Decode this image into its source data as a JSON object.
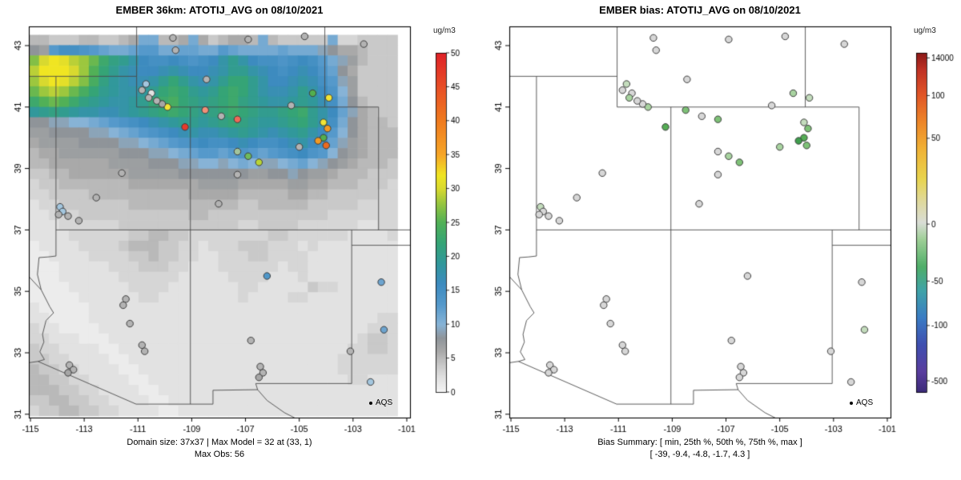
{
  "left_panel": {
    "title": "EMBER 36km: ATOTIJ_AVG on 08/10/2021",
    "caption_line1": "Domain size: 37x37 | Max Model = 32 at (33, 1)",
    "caption_line2": "Max Obs: 56",
    "legend_label": "AQS",
    "colorbar": {
      "unit": "ug/m3",
      "ticks": [
        0,
        5,
        10,
        15,
        20,
        25,
        30,
        35,
        40,
        45,
        50
      ]
    }
  },
  "right_panel": {
    "title": "EMBER bias: ATOTIJ_AVG on 08/10/2021",
    "caption_line1": "Bias Summary: [ min, 25th %, 50th %, 75th %, max ]",
    "caption_line2": "[ -39,  -9.4,  -4.8,  -1.7,  4.3 ]",
    "legend_label": "AQS",
    "colorbar": {
      "unit": "ug/m3",
      "ticks": [
        "14000",
        "100",
        "50",
        "0",
        "-50",
        "-100",
        "-500"
      ]
    }
  },
  "axes": {
    "x_ticks": [
      -115,
      -113,
      -111,
      -109,
      -107,
      -105,
      -103,
      -101
    ],
    "y_ticks": [
      31,
      33,
      35,
      37,
      39,
      41,
      43
    ]
  },
  "station_fields": [
    "lon",
    "lat",
    "obs_color",
    "bias_color"
  ],
  "stations": [
    [
      -109.7,
      43.25,
      "#b3b3b3",
      "#d7d7d7"
    ],
    [
      -109.6,
      42.85,
      "#b3b3b3",
      "#d7d7d7"
    ],
    [
      -106.9,
      43.2,
      "#b3b3b3",
      "#d7d7d7"
    ],
    [
      -104.8,
      43.3,
      "#b3b3b3",
      "#d7d7d7"
    ],
    [
      -102.6,
      43.05,
      "#b3b3b3",
      "#d7d7d7"
    ],
    [
      -104.5,
      41.45,
      "#52af4e",
      "#a8d3a0"
    ],
    [
      -103.9,
      41.3,
      "#f2e434",
      "#c3dcbc"
    ],
    [
      -105.3,
      41.05,
      "#b3b3b3",
      "#d7d7d7"
    ],
    [
      -109.9,
      41.0,
      "#f2e434",
      "#a8d3a0"
    ],
    [
      -110.1,
      41.1,
      "#a6a6a6",
      "#d7d7d7"
    ],
    [
      -110.7,
      41.75,
      "#a3c6de",
      "#c3dcbc"
    ],
    [
      -110.85,
      41.55,
      "#b3b3b3",
      "#d7d7d7"
    ],
    [
      -110.5,
      41.45,
      "#e3e3e3",
      "#d7d7d7"
    ],
    [
      -110.6,
      41.3,
      "#b3b3b3",
      "#a8d3a0"
    ],
    [
      -110.3,
      41.2,
      "#b3b3b3",
      "#d7d7d7"
    ],
    [
      -108.45,
      41.9,
      "#b3b3b3",
      "#d7d7d7"
    ],
    [
      -108.5,
      40.9,
      "#f09078",
      "#7ec177"
    ],
    [
      -107.9,
      40.7,
      "#b3b3b3",
      "#d7d7d7"
    ],
    [
      -107.3,
      40.6,
      "#ee6a58",
      "#7ec177"
    ],
    [
      -109.25,
      40.35,
      "#e63a2b",
      "#55ad55"
    ],
    [
      -104.1,
      40.5,
      "#f2e434",
      "#c3dcbc"
    ],
    [
      -103.95,
      40.3,
      "#f29a23",
      "#7ec177"
    ],
    [
      -104.1,
      40.0,
      "#52af4e",
      "#55ad55"
    ],
    [
      -104.3,
      39.9,
      "#f29a23",
      "#3f9e4d"
    ],
    [
      -104.0,
      39.75,
      "#eb6a20",
      "#7ec177"
    ],
    [
      -105.0,
      39.7,
      "#b3b3b3",
      "#a8d3a0"
    ],
    [
      -107.3,
      39.55,
      "#a2c49c",
      "#d7d7d7"
    ],
    [
      -106.9,
      39.4,
      "#6fbb5d",
      "#a8d3a0"
    ],
    [
      -106.5,
      39.2,
      "#b9d435",
      "#7ec177"
    ],
    [
      -107.3,
      38.8,
      "#b3b3b3",
      "#d7d7d7"
    ],
    [
      -111.6,
      38.85,
      "#b3b3b3",
      "#d7d7d7"
    ],
    [
      -112.55,
      38.05,
      "#b3b3b3",
      "#d7d7d7"
    ],
    [
      -108.0,
      37.85,
      "#b3b3b3",
      "#d7d7d7"
    ],
    [
      -113.9,
      37.75,
      "#a3c6de",
      "#c3dcbc"
    ],
    [
      -113.8,
      37.6,
      "#a3c6de",
      "#d7d7d7"
    ],
    [
      -113.95,
      37.5,
      "#b3b3b3",
      "#d7d7d7"
    ],
    [
      -113.6,
      37.45,
      "#b3b3b3",
      "#d7d7d7"
    ],
    [
      -113.2,
      37.3,
      "#b3b3b3",
      "#d7d7d7"
    ],
    [
      -106.2,
      35.5,
      "#4f97c9",
      "#d7d7d7"
    ],
    [
      -115.35,
      35.45,
      "#6da4cf",
      "#d7d7d7"
    ],
    [
      -115.4,
      34.25,
      "#6da4cf",
      "#c3dcbc"
    ],
    [
      -111.45,
      34.75,
      "#b3b3b3",
      "#d7d7d7"
    ],
    [
      -111.55,
      34.55,
      "#b3b3b3",
      "#d7d7d7"
    ],
    [
      -111.3,
      33.95,
      "#b3b3b3",
      "#d7d7d7"
    ],
    [
      -101.95,
      35.3,
      "#6da4cf",
      "#d7d7d7"
    ],
    [
      -101.85,
      33.75,
      "#6da4cf",
      "#c3dcbc"
    ],
    [
      -110.85,
      33.25,
      "#b3b3b3",
      "#d7d7d7"
    ],
    [
      -110.75,
      33.05,
      "#b3b3b3",
      "#d7d7d7"
    ],
    [
      -106.8,
      33.4,
      "#b3b3b3",
      "#d7d7d7"
    ],
    [
      -113.55,
      32.6,
      "#b3b3b3",
      "#d7d7d7"
    ],
    [
      -113.4,
      32.45,
      "#b3b3b3",
      "#d7d7d7"
    ],
    [
      -113.6,
      32.35,
      "#a6a6a6",
      "#d7d7d7"
    ],
    [
      -106.45,
      32.55,
      "#b3b3b3",
      "#d7d7d7"
    ],
    [
      -106.35,
      32.35,
      "#b3b3b3",
      "#d7d7d7"
    ],
    [
      -106.5,
      32.2,
      "#a6a6a6",
      "#d7d7d7"
    ],
    [
      -103.1,
      33.05,
      "#b3b3b3",
      "#d7d7d7"
    ],
    [
      -102.35,
      32.05,
      "#a3c6de",
      "#d7d7d7"
    ]
  ],
  "basemap_lines": [
    [
      [
        -114.05,
        42.0
      ],
      [
        -114.05,
        36.15
      ],
      [
        -114.35,
        36.12
      ],
      [
        -114.68,
        36.1
      ],
      [
        -114.74,
        35.55
      ],
      [
        -114.6,
        35.05
      ],
      [
        -114.28,
        34.5
      ],
      [
        -114.14,
        34.3
      ],
      [
        -114.42,
        34.05
      ],
      [
        -114.55,
        33.6
      ],
      [
        -114.5,
        33.35
      ],
      [
        -114.65,
        33.03
      ],
      [
        -114.48,
        32.78
      ],
      [
        -114.72,
        32.72
      ]
    ],
    [
      [
        -115.8,
        42.0
      ],
      [
        -111.05,
        42.0
      ]
    ],
    [
      [
        -111.05,
        43.6
      ],
      [
        -111.05,
        41.0
      ]
    ],
    [
      [
        -111.05,
        41.0
      ],
      [
        -102.05,
        41.0
      ]
    ],
    [
      [
        -104.05,
        43.6
      ],
      [
        -104.05,
        41.0
      ]
    ],
    [
      [
        -109.05,
        41.0
      ],
      [
        -109.05,
        31.33
      ]
    ],
    [
      [
        -114.05,
        37.0
      ],
      [
        -100.8,
        37.0
      ]
    ],
    [
      [
        -102.05,
        41.0
      ],
      [
        -102.05,
        37.0
      ]
    ],
    [
      [
        -103.05,
        37.0
      ],
      [
        -103.05,
        32.0
      ]
    ],
    [
      [
        -103.05,
        36.5
      ],
      [
        -100.8,
        36.5
      ]
    ],
    [
      [
        -103.05,
        32.0
      ],
      [
        -106.62,
        32.0
      ]
    ],
    [
      [
        -106.62,
        32.0
      ],
      [
        -106.55,
        31.8
      ],
      [
        -106.2,
        31.45
      ],
      [
        -105.55,
        31.05
      ],
      [
        -105.1,
        30.85
      ]
    ],
    [
      [
        -106.55,
        31.8
      ],
      [
        -108.21,
        31.78
      ],
      [
        -108.21,
        31.33
      ],
      [
        -111.07,
        31.33
      ],
      [
        -114.72,
        32.72
      ],
      [
        -115.8,
        32.58
      ]
    ],
    [
      [
        -115.8,
        36.18
      ],
      [
        -114.6,
        35.05
      ]
    ]
  ],
  "chart_data": [
    {
      "type": "heatmap",
      "title": "EMBER 36km: ATOTIJ_AVG on 08/10/2021",
      "value_unit": "ug/m3",
      "value_range": [
        0,
        50
      ],
      "grid_size": [
        37,
        37
      ],
      "max_model": 32,
      "max_model_cell": "(33, 1)",
      "max_obs": 56,
      "extent": {
        "lon": [
          -115.05,
          -101.35
        ],
        "lat": [
          30.95,
          43.35
        ]
      },
      "value_encoding": "0123456789ABCDEFGHIJKLMNOPQRSTUVW",
      "colormap_stops": [
        [
          0,
          "#f5f5f5"
        ],
        [
          2,
          "#e2e2e2"
        ],
        [
          4,
          "#c9c9c9"
        ],
        [
          6,
          "#a9a9a9"
        ],
        [
          8,
          "#8f9499"
        ],
        [
          10,
          "#87b3d6"
        ],
        [
          13,
          "#5599cb"
        ],
        [
          16,
          "#3d8bbf"
        ],
        [
          19,
          "#31989b"
        ],
        [
          22,
          "#35a476"
        ],
        [
          25,
          "#51b057"
        ],
        [
          28,
          "#9cc73e"
        ],
        [
          30,
          "#d8d92f"
        ],
        [
          32,
          "#f0e522"
        ],
        [
          35,
          "#f6a627"
        ],
        [
          40,
          "#ef7b1e"
        ],
        [
          45,
          "#e84f26"
        ],
        [
          50,
          "#df2127"
        ]
      ],
      "grid_rows": [
        "55444554456BB556B645665B544444B334444",
        "87DFFEDCBBCDDBBCCBBDCBBBBCBBB98665444",
        "RUWVTSQNLKIGFFGFEFGIKIGFFEFGFDB975444",
        "TWWWUSPMKIHGGHIHGGHIKKIHGFGHGEC864444",
        "SUWVTROLJIHHIKMKIHIKMMKIGGHIHFD974444",
        "QSTSQOMKJIIJKMNMKJKMNMKIHHIKIGEA74444",
        "NPQPNLKJIIJKMNOMLKLMNLKJIIJKJHFB85444",
        "JKLKJIIHHIJKLMNMLKLMNMLKKLMNKIGC96544",
        "8899AABCDEFGHIJKKJKLMLKJJKLMKIFB86554",
        "77888899ABCDEFGHIHHIJKJIHIJKIGDA86555",
        "67777888899ABCDEFGFFGHGFFGHIGFC976555",
        "56677777788899ABCDDCDEDCDEFGEDA876555",
        "55666666777788899AA9ABA99ABCA98765554",
        "4455666666777778888888778898776555444",
        "3445555555666666677776666677665554443",
        "3344445555555555666665555566554444433",
        "2334444444555555555554455555444443333",
        "2233344444444444554444444444443333333",
        "2223333334444444444443344443333332233",
        "2222333333445544333333334433333322223",
        "1222233334555443323334443332322222222",
        "1122223333445443322333443333222222222",
        "1112222233344433222333333233222222222",
        "1112222223333332222233332223222222222",
        "1111222222333322222223322222433222222",
        "1111122222233222222223222233222222222",
        "2111112222222222222222222222222222222",
        "2211112222222222222222222222222222233",
        "3221111222222222222222222222222222333",
        "3322211122222222222222222222222223443",
        "4332222112222222222222222222222233443",
        "4433222211222222222222222222222333333",
        "5443322221122222222222222222222333333",
        "5544332222112222222222222222222233222",
        "5554433222211222222222222222222222222",
        "4455443322221122222222222222222222222",
        "3445544332222112222222222222222222222"
      ]
    },
    {
      "type": "scatter",
      "title": "EMBER bias: ATOTIJ_AVG on 08/10/2021",
      "stations_source": "stations",
      "bias_summary_labels": "[ min, 25th %, 50th %, 75th %, max ]",
      "bias_summary_values": [
        -39,
        -9.4,
        -4.8,
        -1.7,
        4.3
      ],
      "colorbar_stops": [
        [
          0,
          "#3b2a78"
        ],
        [
          0.06,
          "#5a3d9e"
        ],
        [
          0.14,
          "#3f4fb0"
        ],
        [
          0.22,
          "#3a7cc4"
        ],
        [
          0.3,
          "#3fa3a8"
        ],
        [
          0.37,
          "#4fae69"
        ],
        [
          0.45,
          "#9ecf96"
        ],
        [
          0.5,
          "#d9ddd6"
        ],
        [
          0.56,
          "#dfd9a0"
        ],
        [
          0.63,
          "#e8d44e"
        ],
        [
          0.72,
          "#f0b135"
        ],
        [
          0.8,
          "#ed8428"
        ],
        [
          0.88,
          "#e05426"
        ],
        [
          0.95,
          "#c03225"
        ],
        [
          1,
          "#8c1a18"
        ]
      ],
      "colorbar_ticks": [
        [
          "14000",
          0.985
        ],
        [
          "100",
          0.874
        ],
        [
          "50",
          0.748
        ],
        [
          "0",
          0.495
        ],
        [
          "-50",
          0.327
        ],
        [
          "-100",
          0.196
        ],
        [
          "-500",
          0.033
        ]
      ]
    }
  ]
}
